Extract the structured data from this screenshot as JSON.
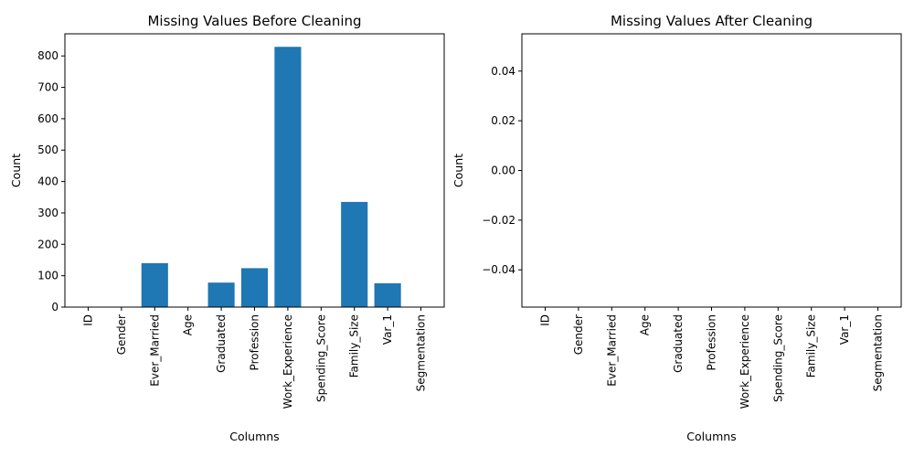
{
  "chart_data": [
    {
      "type": "bar",
      "title": "Missing Values Before Cleaning",
      "xlabel": "Columns",
      "ylabel": "Count",
      "categories": [
        "ID",
        "Gender",
        "Ever_Married",
        "Age",
        "Graduated",
        "Profession",
        "Work_Experience",
        "Spending_Score",
        "Family_Size",
        "Var_1",
        "Segmentation"
      ],
      "values": [
        0,
        0,
        140,
        0,
        78,
        124,
        829,
        0,
        335,
        76,
        0
      ],
      "yticks": [
        0,
        100,
        200,
        300,
        400,
        500,
        600,
        700,
        800
      ],
      "ytick_labels": [
        "0",
        "100",
        "200",
        "300",
        "400",
        "500",
        "600",
        "700",
        "800"
      ],
      "ylim": [
        0,
        870.45
      ],
      "color": "#1f77b4",
      "grid": false
    },
    {
      "type": "bar",
      "title": "Missing Values After Cleaning",
      "xlabel": "Columns",
      "ylabel": "Count",
      "categories": [
        "ID",
        "Gender",
        "Ever_Married",
        "Age",
        "Graduated",
        "Profession",
        "Work_Experience",
        "Spending_Score",
        "Family_Size",
        "Var_1",
        "Segmentation"
      ],
      "values": [
        0,
        0,
        0,
        0,
        0,
        0,
        0,
        0,
        0,
        0,
        0
      ],
      "yticks": [
        -0.04,
        -0.02,
        0.0,
        0.02,
        0.04
      ],
      "ytick_labels": [
        "−0.04",
        "−0.02",
        "0.00",
        "0.02",
        "0.04"
      ],
      "ylim": [
        -0.055,
        0.055
      ],
      "color": "#1f77b4",
      "grid": false
    }
  ]
}
